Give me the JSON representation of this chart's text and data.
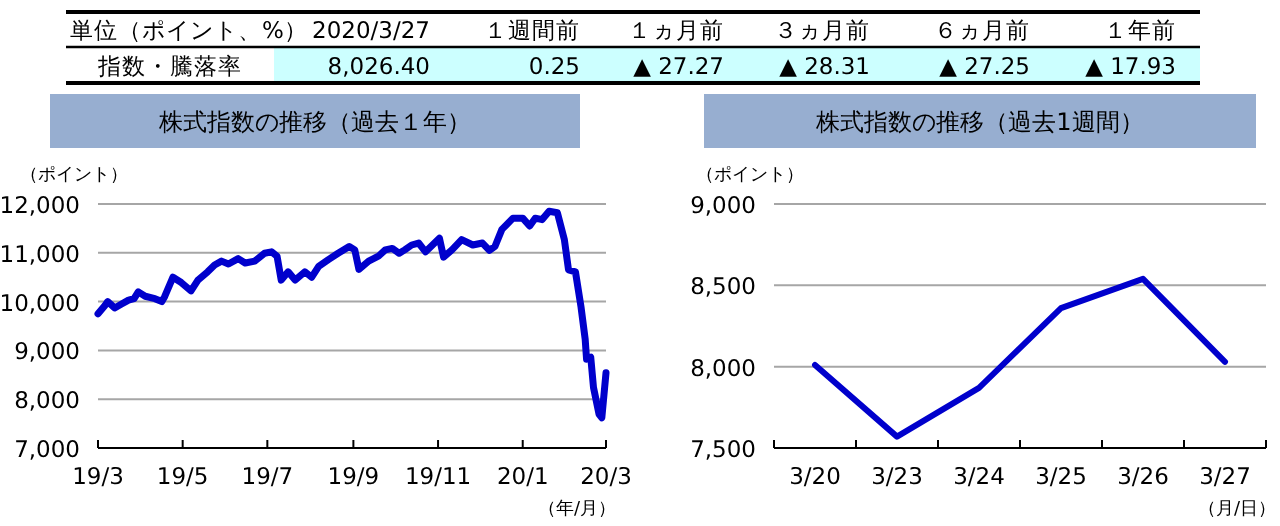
{
  "chart_data": [
    {
      "type": "other",
      "annotations": [
        "単位（ポイント、%）",
        "2020/3/27",
        "１週間前",
        "１ヵ月前",
        "３ヵ月前",
        "６ヵ月前",
        "１年前",
        "指数・騰落率",
        "8,026.40",
        "0.25",
        "▲ 27.27",
        "▲ 28.31",
        "▲ 27.25",
        "▲ 17.93"
      ]
    },
    {
      "type": "line",
      "title": "株式指数の推移（過去１年）",
      "ylabel": "（ポイント）",
      "xlabel": "（年/月）",
      "color": "#0000cc",
      "grid": "y",
      "x": [
        "2019-03-01",
        "2019-03-06",
        "2019-03-08",
        "2019-03-13",
        "2019-03-18",
        "2019-03-23",
        "2019-03-27",
        "2019-03-30",
        "2019-04-04",
        "2019-04-11",
        "2019-04-16",
        "2019-04-18",
        "2019-04-24",
        "2019-04-30",
        "2019-05-07",
        "2019-05-12",
        "2019-05-19",
        "2019-05-24",
        "2019-05-29",
        "2019-06-03",
        "2019-06-10",
        "2019-06-15",
        "2019-06-22",
        "2019-06-29",
        "2019-07-04",
        "2019-07-08",
        "2019-07-11",
        "2019-07-16",
        "2019-07-21",
        "2019-07-28",
        "2019-08-02",
        "2019-08-07",
        "2019-08-14",
        "2019-08-21",
        "2019-08-29",
        "2019-09-02",
        "2019-09-05",
        "2019-09-12",
        "2019-09-19",
        "2019-09-24",
        "2019-09-29",
        "2019-10-04",
        "2019-10-08",
        "2019-10-13",
        "2019-10-18",
        "2019-10-23",
        "2019-10-28",
        "2019-11-02",
        "2019-11-05",
        "2019-11-11",
        "2019-11-18",
        "2019-11-26",
        "2019-12-03",
        "2019-12-08",
        "2019-12-12",
        "2019-12-17",
        "2019-12-25",
        "2020-01-01",
        "2020-01-06",
        "2020-01-10",
        "2020-01-15",
        "2020-01-20",
        "2020-01-26",
        "2020-01-31",
        "2020-02-03",
        "2020-02-08",
        "2020-02-12",
        "2020-02-15",
        "2020-02-16",
        "2020-02-19",
        "2020-02-21",
        "2020-02-25",
        "2020-02-27",
        "2020-03-01"
      ],
      "values": [
        9750,
        9920,
        10000,
        9870,
        9950,
        10030,
        10060,
        10200,
        10110,
        10060,
        10000,
        10100,
        10500,
        10390,
        10220,
        10440,
        10610,
        10750,
        10830,
        10770,
        10880,
        10790,
        10830,
        10990,
        11020,
        10930,
        10440,
        10610,
        10440,
        10610,
        10500,
        10720,
        10860,
        10990,
        11130,
        11060,
        10660,
        10830,
        10930,
        11060,
        11090,
        10990,
        11060,
        11160,
        11200,
        11020,
        11160,
        11300,
        10910,
        11060,
        11270,
        11160,
        11200,
        11050,
        11130,
        11480,
        11710,
        11710,
        11550,
        11710,
        11680,
        11850,
        11820,
        11270,
        10650,
        10610,
        9890,
        9230,
        8820,
        8860,
        8240,
        7690,
        7620,
        8540
      ],
      "xlim": [
        "2019-03-01",
        "2020-03-01"
      ],
      "xticks": [
        {
          "value": "2019-03-01",
          "label": "19/3"
        },
        {
          "value": "2019-05-01",
          "label": "19/5"
        },
        {
          "value": "2019-07-01",
          "label": "19/7"
        },
        {
          "value": "2019-09-01",
          "label": "19/9"
        },
        {
          "value": "2019-11-01",
          "label": "19/11"
        },
        {
          "value": "2020-01-01",
          "label": "20/1"
        },
        {
          "value": "2020-03-01",
          "label": "20/3"
        }
      ],
      "ylim": [
        7000,
        12000
      ],
      "yticks": [
        {
          "value": 7000,
          "label": "7,000"
        },
        {
          "value": 8000,
          "label": "8,000"
        },
        {
          "value": 9000,
          "label": "9,000"
        },
        {
          "value": 10000,
          "label": "10,000"
        },
        {
          "value": 11000,
          "label": "11,000"
        },
        {
          "value": 12000,
          "label": "12,000"
        }
      ]
    },
    {
      "type": "line",
      "title": "株式指数の推移（過去1週間）",
      "ylabel": "（ポイント）",
      "xlabel": "（月/日）",
      "color": "#0000cc",
      "grid": "y",
      "categories": [
        "3/20",
        "3/23",
        "3/24",
        "3/25",
        "3/26",
        "3/27"
      ],
      "values": [
        8010,
        7570,
        7870,
        8360,
        8540,
        8030
      ],
      "ylim": [
        7500,
        9000
      ],
      "yticks": [
        {
          "value": 7500,
          "label": "7,500"
        },
        {
          "value": 8000,
          "label": "8,000"
        },
        {
          "value": 8500,
          "label": "8,500"
        },
        {
          "value": 9000,
          "label": "9,000"
        }
      ]
    }
  ]
}
